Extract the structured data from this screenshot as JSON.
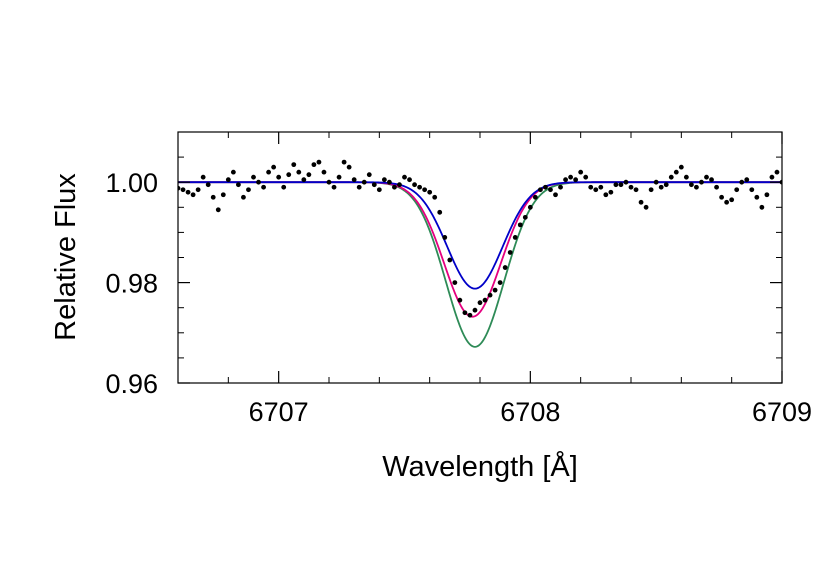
{
  "chart_data": {
    "type": "line",
    "title": "",
    "xlabel": "Wavelength [Å]",
    "ylabel": "Relative Flux",
    "xlim": [
      6706.6,
      6709.0
    ],
    "ylim": [
      0.96,
      1.01
    ],
    "x_ticks": [
      6707,
      6708,
      6709
    ],
    "x_tick_labels": [
      "6707",
      "6708",
      "6709"
    ],
    "y_ticks": [
      0.96,
      0.98,
      1.0
    ],
    "y_tick_labels": [
      "0.96",
      "0.98",
      "1.00"
    ],
    "grid": false,
    "legend": "none",
    "series": [
      {
        "kind": "line",
        "color": "#2e8b57",
        "continuum": 1.0,
        "line_center": 6707.78,
        "depth": 0.0328,
        "sigma": 0.115
      },
      {
        "kind": "line",
        "color": "#e4007f",
        "continuum": 1.0,
        "line_center": 6707.77,
        "depth": 0.0268,
        "sigma": 0.112
      },
      {
        "kind": "line",
        "color": "#0000c8",
        "continuum": 1.0,
        "line_center": 6707.78,
        "depth": 0.0212,
        "sigma": 0.11
      },
      {
        "kind": "scatter",
        "color": "#000000",
        "x": [
          6706.6,
          6706.62,
          6706.64,
          6706.66,
          6706.68,
          6706.7,
          6706.72,
          6706.74,
          6706.76,
          6706.78,
          6706.8,
          6706.82,
          6706.84,
          6706.86,
          6706.88,
          6706.9,
          6706.92,
          6706.94,
          6706.96,
          6706.98,
          6707.0,
          6707.02,
          6707.04,
          6707.06,
          6707.08,
          6707.1,
          6707.12,
          6707.14,
          6707.16,
          6707.18,
          6707.2,
          6707.22,
          6707.24,
          6707.26,
          6707.28,
          6707.3,
          6707.32,
          6707.34,
          6707.36,
          6707.38,
          6707.4,
          6707.42,
          6707.44,
          6707.46,
          6707.48,
          6707.5,
          6707.52,
          6707.54,
          6707.56,
          6707.58,
          6707.6,
          6707.62,
          6707.64,
          6707.66,
          6707.68,
          6707.7,
          6707.72,
          6707.74,
          6707.76,
          6707.78,
          6707.8,
          6707.82,
          6707.84,
          6707.86,
          6707.88,
          6707.9,
          6707.92,
          6707.94,
          6707.96,
          6707.98,
          6708.0,
          6708.02,
          6708.04,
          6708.06,
          6708.08,
          6708.1,
          6708.12,
          6708.14,
          6708.16,
          6708.18,
          6708.2,
          6708.22,
          6708.24,
          6708.26,
          6708.28,
          6708.3,
          6708.32,
          6708.34,
          6708.36,
          6708.38,
          6708.4,
          6708.42,
          6708.44,
          6708.46,
          6708.48,
          6708.5,
          6708.52,
          6708.54,
          6708.56,
          6708.58,
          6708.6,
          6708.62,
          6708.64,
          6708.66,
          6708.68,
          6708.7,
          6708.72,
          6708.74,
          6708.76,
          6708.78,
          6708.8,
          6708.82,
          6708.84,
          6708.86,
          6708.88,
          6708.9,
          6708.92,
          6708.94,
          6708.96,
          6708.98,
          6709.0
        ],
        "y": [
          0.9988,
          0.9985,
          0.998,
          0.9975,
          0.9985,
          1.001,
          0.9995,
          0.997,
          0.9945,
          0.9975,
          1.0005,
          1.002,
          0.9995,
          0.997,
          0.9985,
          1.001,
          1.0,
          0.999,
          1.002,
          1.003,
          1.001,
          0.999,
          1.0015,
          1.0035,
          1.002,
          1.0005,
          1.0015,
          1.0035,
          1.004,
          1.002,
          1.0,
          0.999,
          1.001,
          1.004,
          1.003,
          1.0005,
          0.999,
          1.0,
          1.0015,
          0.9995,
          0.9985,
          1.0005,
          1.0,
          0.999,
          0.9995,
          1.001,
          1.0005,
          0.9995,
          0.999,
          0.9985,
          0.998,
          0.997,
          0.994,
          0.989,
          0.9845,
          0.98,
          0.9765,
          0.974,
          0.9735,
          0.9745,
          0.976,
          0.9765,
          0.9775,
          0.9785,
          0.98,
          0.983,
          0.986,
          0.989,
          0.9915,
          0.993,
          0.995,
          0.997,
          0.9985,
          0.999,
          0.9985,
          0.9975,
          0.999,
          1.0005,
          1.001,
          1.0005,
          1.002,
          1.001,
          0.999,
          0.9985,
          0.999,
          0.9975,
          0.998,
          0.9995,
          0.9995,
          1.0,
          0.999,
          0.9985,
          0.996,
          0.995,
          0.9985,
          1.0,
          0.999,
          0.9995,
          1.001,
          1.002,
          1.003,
          1.001,
          0.9995,
          0.999,
          1.0,
          1.001,
          1.0005,
          0.999,
          0.997,
          0.996,
          0.9965,
          0.9985,
          1.0,
          1.0005,
          0.9985,
          0.997,
          0.995,
          0.9975,
          1.001,
          1.002,
          1.0
        ]
      }
    ]
  }
}
